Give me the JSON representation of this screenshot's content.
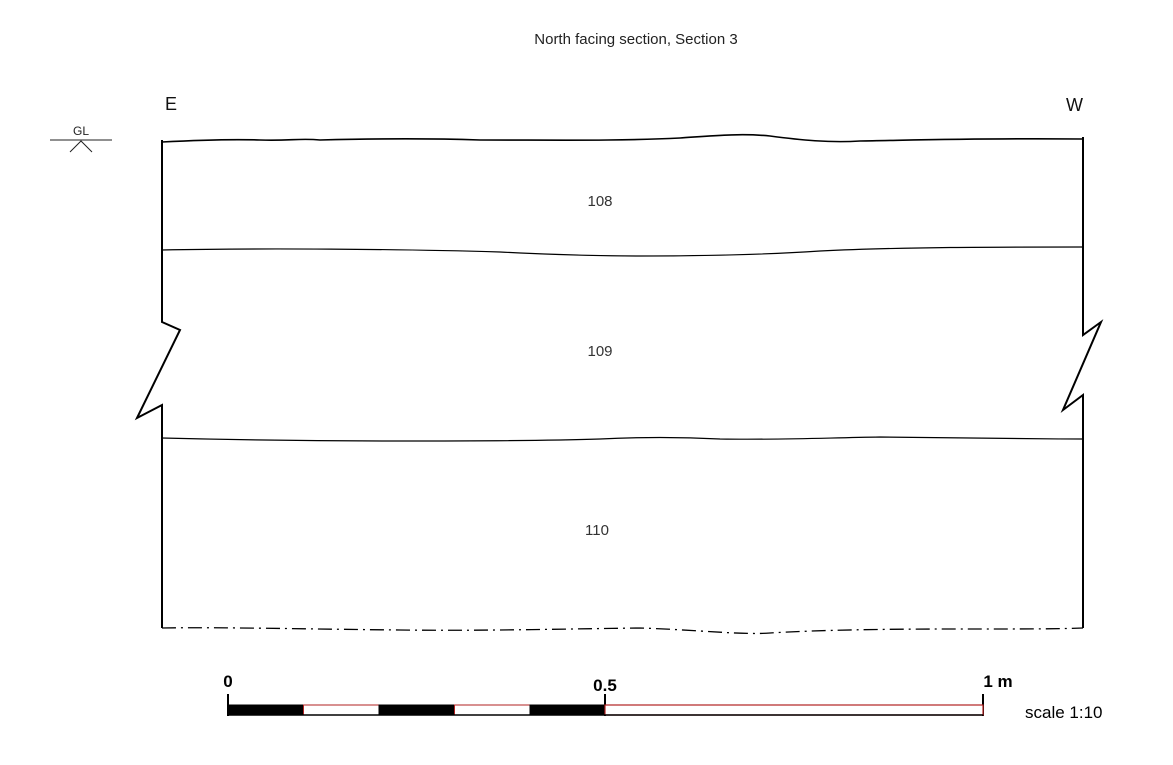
{
  "title": "North facing section, Section 3",
  "orientation": {
    "left": "E",
    "right": "W"
  },
  "ground_level": {
    "label": "GL"
  },
  "contexts": [
    {
      "id": "108",
      "label": "108"
    },
    {
      "id": "109",
      "label": "109"
    },
    {
      "id": "110",
      "label": "110"
    }
  ],
  "scale_bar": {
    "labels": [
      "0",
      "0.5",
      "1 m"
    ],
    "ratio_label": "scale 1:10",
    "fill_color": "#000000",
    "outline_color": "#b22222"
  }
}
